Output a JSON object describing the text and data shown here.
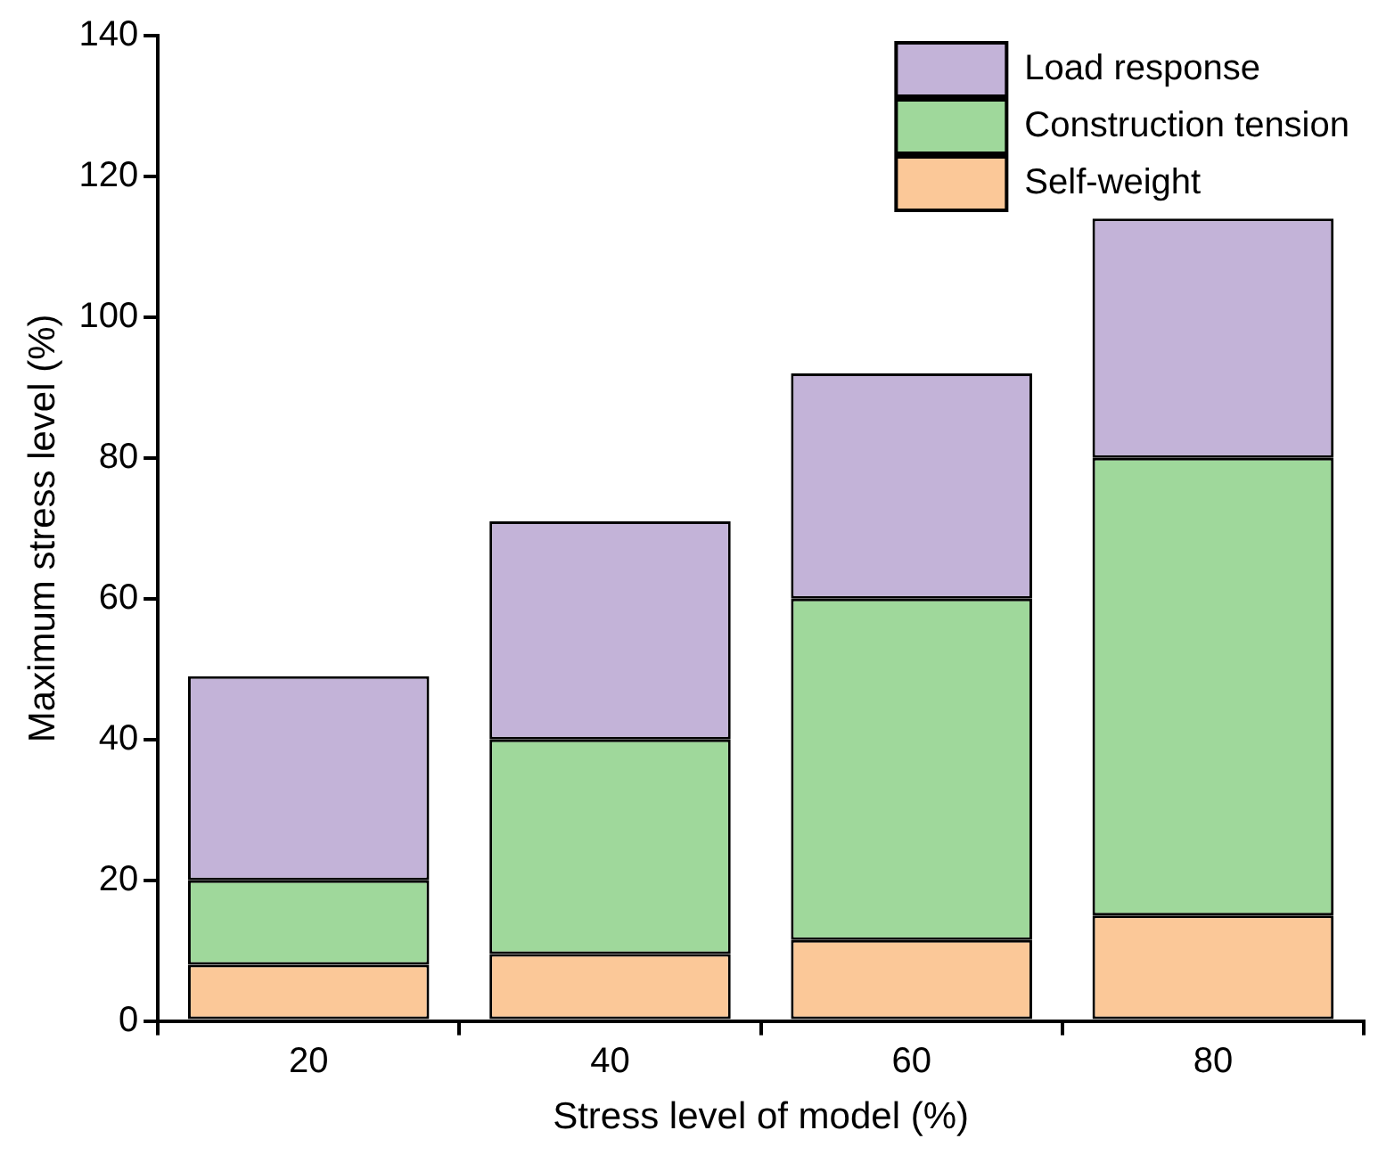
{
  "chart_data": {
    "type": "bar",
    "stacked": true,
    "xlabel": "Stress level of model (%)",
    "ylabel": "Maximum stress level (%)",
    "categories": [
      "20",
      "40",
      "60",
      "80"
    ],
    "series": [
      {
        "name": "Self-weight",
        "color": "#fbc898",
        "values": [
          8,
          9.5,
          11.5,
          15
        ]
      },
      {
        "name": "Construction tension",
        "color": "#9fd89b",
        "values": [
          12,
          30.5,
          48.5,
          65
        ]
      },
      {
        "name": "Load response",
        "color": "#c3b3d8",
        "values": [
          29,
          31,
          32,
          34
        ]
      }
    ],
    "ylim": [
      0,
      140
    ],
    "yticks": [
      0,
      20,
      40,
      60,
      80,
      100,
      120,
      140
    ],
    "grid": false,
    "legend": "top right"
  }
}
